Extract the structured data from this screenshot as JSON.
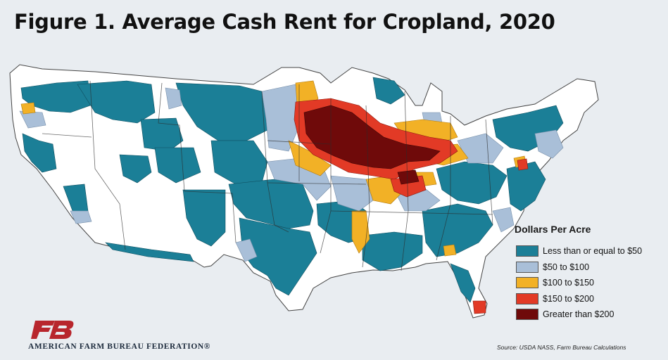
{
  "title": "Figure 1. Average Cash Rent for Cropland, 2020",
  "legend": {
    "title": "Dollars Per Acre",
    "items": [
      {
        "label": "Less than or equal to $50",
        "color": "#1b7f97"
      },
      {
        "label": "$50 to $100",
        "color": "#a9bfd8"
      },
      {
        "label": "$100 to $150",
        "color": "#f2b126"
      },
      {
        "label": "$150 to $200",
        "color": "#e23a26"
      },
      {
        "label": "Greater than $200",
        "color": "#6f0a0a"
      }
    ]
  },
  "organization": "AMERICAN FARM BUREAU FEDERATION®",
  "source": "Source: USDA NASS, Farm Bureau Calculations",
  "colors": {
    "no_data": "#ffffff",
    "state_border": "#333333",
    "logo": "#b8262d",
    "background": "#e9edf1"
  }
}
